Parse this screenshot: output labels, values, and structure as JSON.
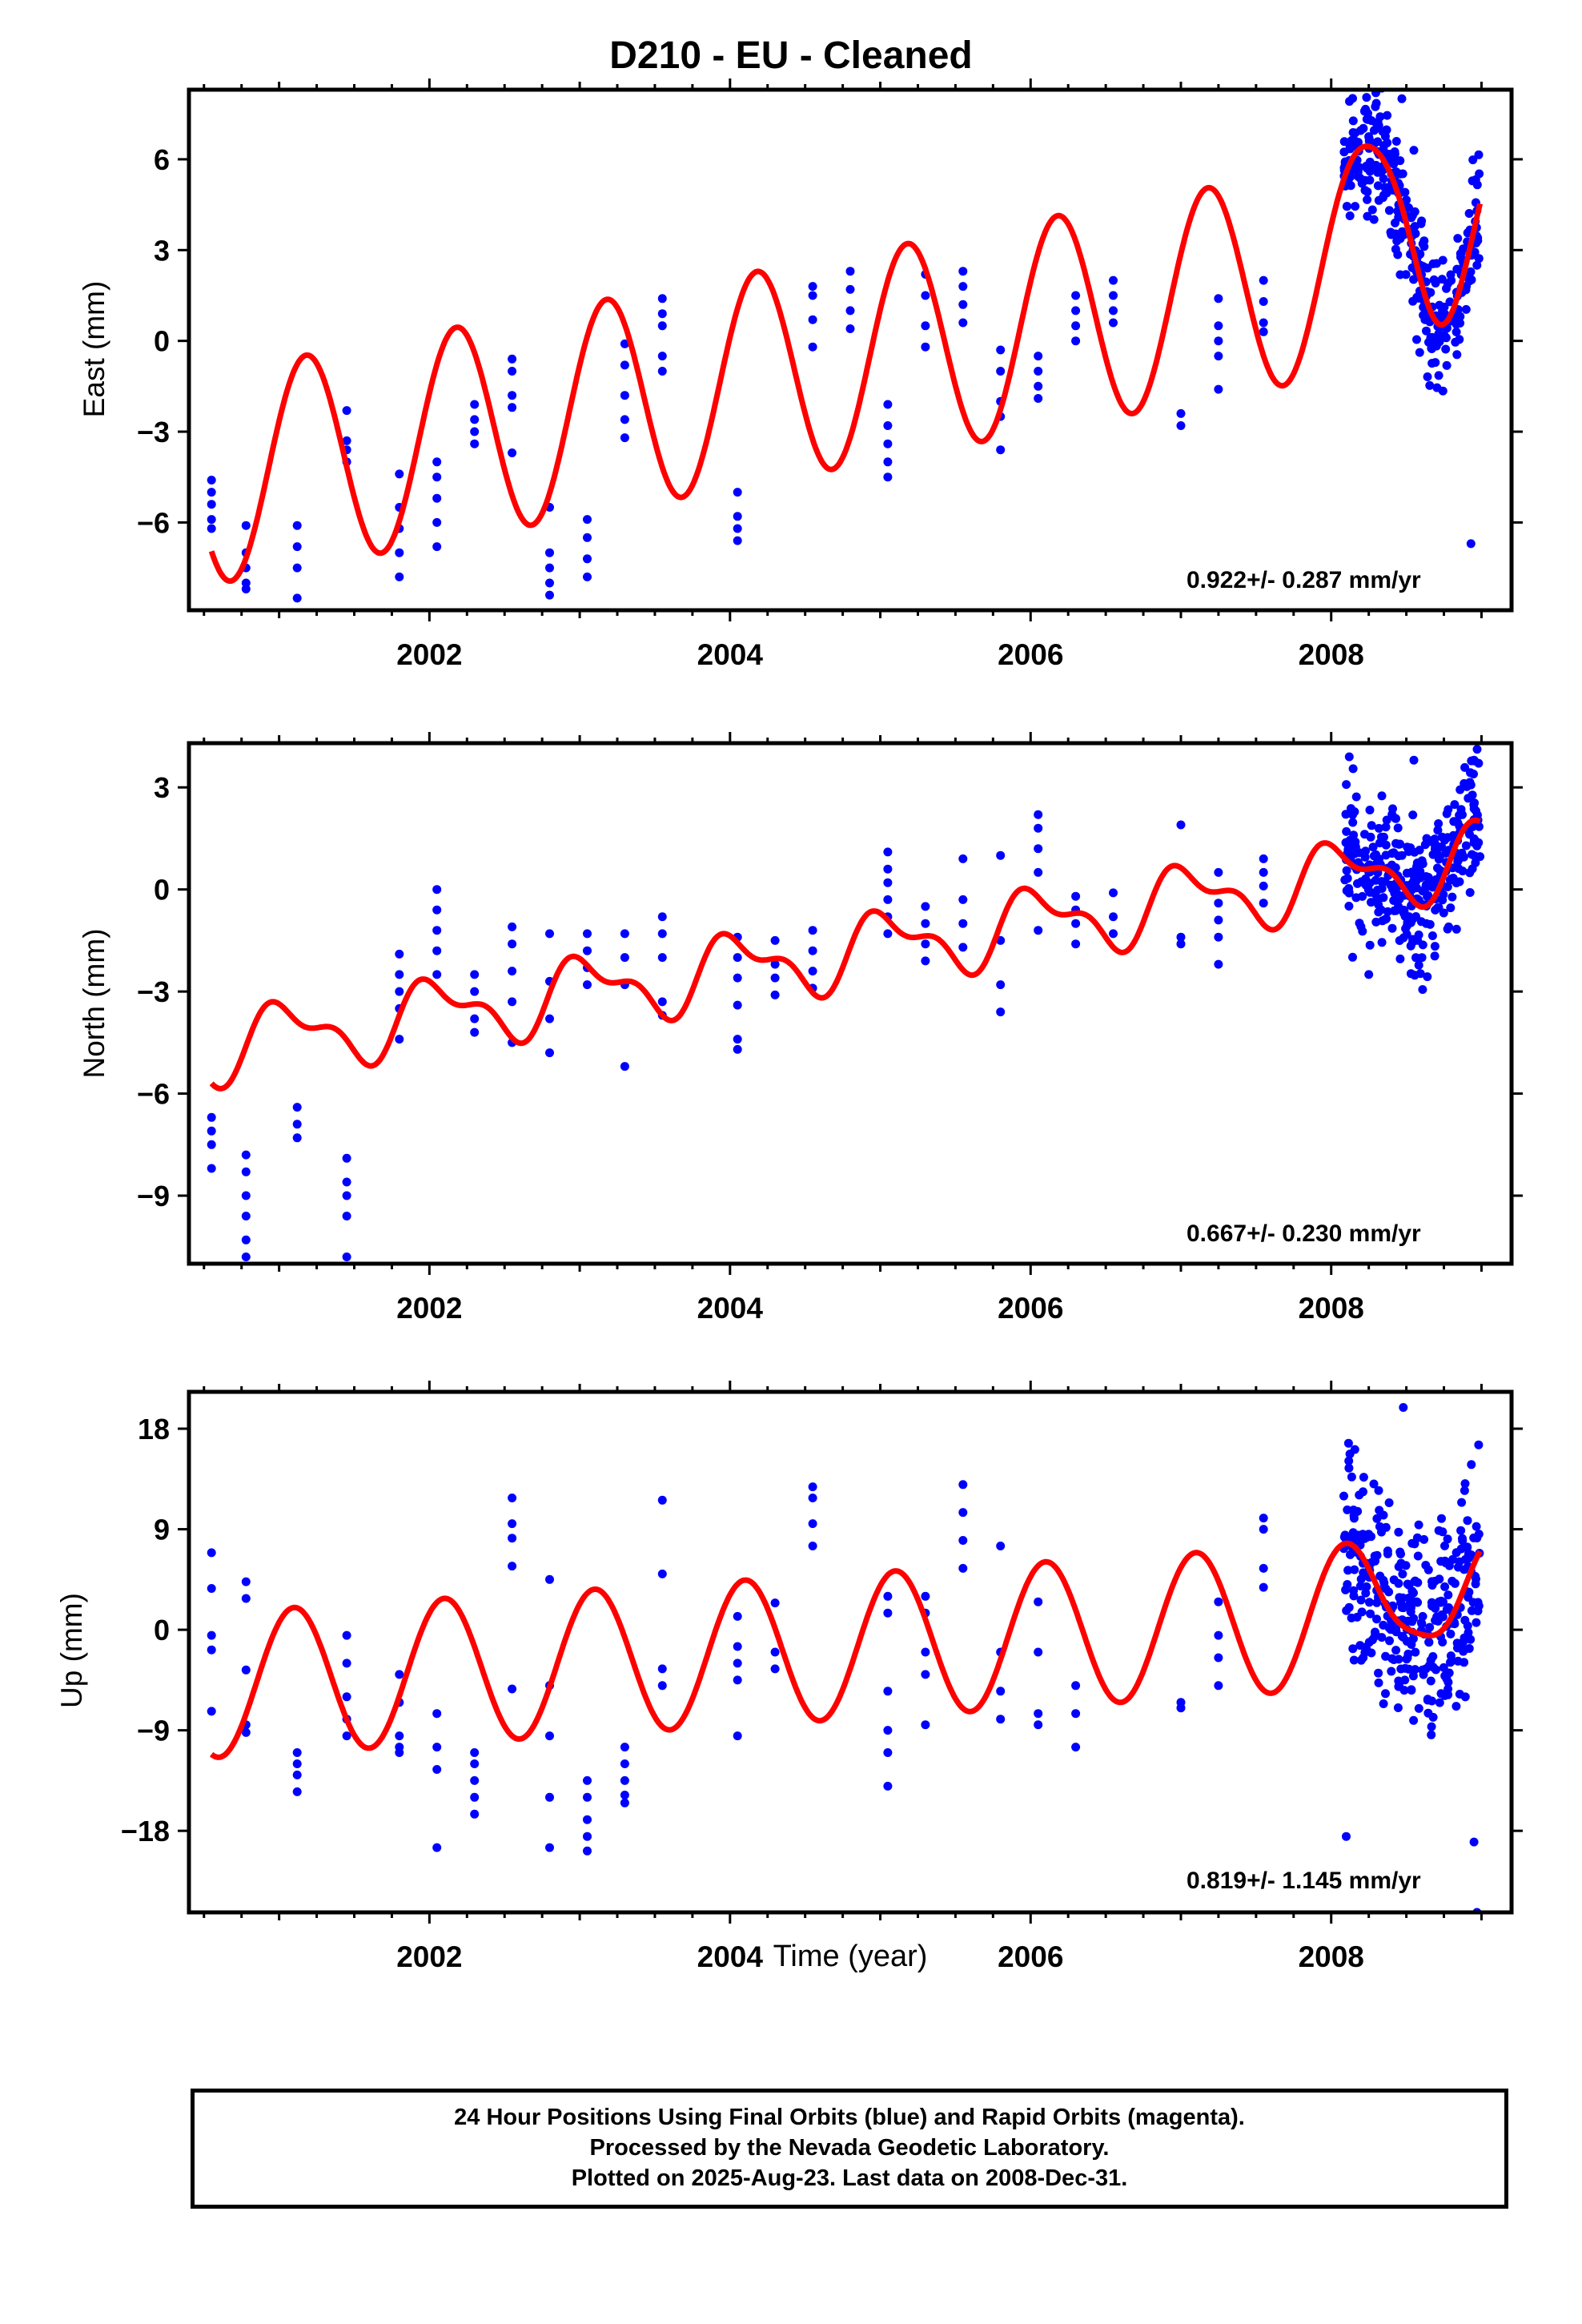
{
  "title": "D210  - EU - Cleaned",
  "xlabel": "Time (year)",
  "footer": {
    "line1": "24 Hour Positions Using Final Orbits (blue) and Rapid Orbits (magenta).",
    "line2": "Processed by the Nevada Geodetic Laboratory.",
    "line3": "Plotted on 2025-Aug-23. Last data on 2008-Dec-31."
  },
  "colors": {
    "data": "#0000ff",
    "model": "#ff0000",
    "axis": "#000000"
  },
  "chart_data": [
    {
      "type": "scatter",
      "ylabel": "East (mm)",
      "rate": "0.922+/- 0.287 mm/yr",
      "xlim": [
        2000.4,
        2009.2
      ],
      "ylim": [
        -8.9,
        8.3
      ],
      "xticks": [
        2002,
        2004,
        2006,
        2008
      ],
      "yticks": [
        -6,
        -3,
        0,
        3,
        6
      ],
      "model": {
        "offset": -4.6,
        "rate": 0.922,
        "t0": 2000.5,
        "amp": 3.5,
        "phase_year": 2000.93,
        "extra_peak": {
          "t": 2008.5,
          "height": 2.6,
          "width": 0.22
        }
      },
      "groups": [
        {
          "t": 2000.55,
          "ys": [
            -4.6,
            -5.0,
            -5.4,
            -5.9,
            -6.2
          ]
        },
        {
          "t": 2000.78,
          "ys": [
            -6.1,
            -7.0,
            -7.5,
            -8.0,
            -8.2
          ]
        },
        {
          "t": 2001.12,
          "ys": [
            -6.1,
            -6.8,
            -7.5,
            -8.5
          ]
        },
        {
          "t": 2001.45,
          "ys": [
            -2.3,
            -3.3,
            -3.6,
            -4.0
          ]
        },
        {
          "t": 2001.8,
          "ys": [
            -4.4,
            -5.5,
            -6.2,
            -7.0,
            -7.8
          ]
        },
        {
          "t": 2002.05,
          "ys": [
            -4.0,
            -4.5,
            -5.2,
            -6.0,
            -6.8
          ]
        },
        {
          "t": 2002.3,
          "ys": [
            -2.1,
            -2.6,
            -3.0,
            -3.4
          ]
        },
        {
          "t": 2002.55,
          "ys": [
            -0.6,
            -1.0,
            -1.8,
            -2.2,
            -3.7
          ]
        },
        {
          "t": 2002.8,
          "ys": [
            -5.5,
            -7.0,
            -7.5,
            -8.0,
            -8.4
          ]
        },
        {
          "t": 2003.05,
          "ys": [
            -5.9,
            -6.5,
            -7.2,
            -7.8
          ]
        },
        {
          "t": 2003.3,
          "ys": [
            -0.1,
            -0.8,
            -1.8,
            -2.6,
            -3.2
          ]
        },
        {
          "t": 2003.55,
          "ys": [
            1.4,
            0.9,
            0.5,
            -0.5,
            -1.0
          ]
        },
        {
          "t": 2004.05,
          "ys": [
            -5.0,
            -5.8,
            -6.2,
            -6.6
          ]
        },
        {
          "t": 2004.55,
          "ys": [
            1.8,
            1.5,
            0.7,
            -0.2
          ]
        },
        {
          "t": 2004.8,
          "ys": [
            2.3,
            1.7,
            1.0,
            0.4
          ]
        },
        {
          "t": 2005.05,
          "ys": [
            -2.1,
            -2.8,
            -3.4,
            -4.0,
            -4.5
          ]
        },
        {
          "t": 2005.3,
          "ys": [
            2.2,
            1.5,
            0.5,
            -0.2
          ]
        },
        {
          "t": 2005.55,
          "ys": [
            2.3,
            1.8,
            1.2,
            0.6
          ]
        },
        {
          "t": 2005.8,
          "ys": [
            -0.3,
            -1.0,
            -2.0,
            -2.5,
            -3.6
          ]
        },
        {
          "t": 2006.05,
          "ys": [
            -0.5,
            -1.0,
            -1.5,
            -1.9
          ]
        },
        {
          "t": 2006.3,
          "ys": [
            1.5,
            1.0,
            0.5,
            0.0
          ]
        },
        {
          "t": 2006.55,
          "ys": [
            2.0,
            1.5,
            1.0,
            0.6
          ]
        },
        {
          "t": 2007.0,
          "ys": [
            -2.4,
            -2.8
          ]
        },
        {
          "t": 2007.25,
          "ys": [
            1.4,
            0.5,
            0.0,
            -0.5,
            -1.6
          ]
        },
        {
          "t": 2007.55,
          "ys": [
            2.0,
            1.3,
            0.6,
            0.3
          ]
        }
      ],
      "dense": {
        "start": 2008.08,
        "end": 2008.99,
        "n": 340,
        "seed": 7,
        "noise": 1.0,
        "outliers": [
          [
            2008.47,
            8.0
          ],
          [
            2008.93,
            -6.7
          ],
          [
            2008.97,
            4.3
          ],
          [
            2008.97,
            2.5
          ],
          [
            2008.55,
            6.3
          ]
        ]
      }
    },
    {
      "type": "scatter",
      "ylabel": "North (mm)",
      "rate": "0.667+/- 0.230 mm/yr",
      "xlim": [
        2000.4,
        2009.2
      ],
      "ylim": [
        -11.0,
        4.3
      ],
      "xticks": [
        2002,
        2004,
        2006,
        2008
      ],
      "yticks": [
        -9,
        -6,
        -3,
        0,
        3
      ],
      "model": {
        "offset": -4.7,
        "rate": 0.667,
        "t0": 2000.5,
        "amp": 0.9,
        "phase_year": 2000.8,
        "h2": 0.45,
        "h2_phase": 0.3
      },
      "groups": [
        {
          "t": 2000.55,
          "ys": [
            -6.7,
            -7.1,
            -7.5,
            -8.2
          ]
        },
        {
          "t": 2000.78,
          "ys": [
            -7.8,
            -8.3,
            -9.0,
            -9.6,
            -10.3,
            -10.8
          ]
        },
        {
          "t": 2001.12,
          "ys": [
            -6.4,
            -6.9,
            -7.3
          ]
        },
        {
          "t": 2001.45,
          "ys": [
            -7.9,
            -8.6,
            -9.0,
            -9.6,
            -10.8
          ]
        },
        {
          "t": 2001.8,
          "ys": [
            -1.9,
            -2.5,
            -3.0,
            -3.5,
            -4.4
          ]
        },
        {
          "t": 2002.05,
          "ys": [
            0.0,
            -0.6,
            -1.2,
            -1.8,
            -2.5
          ]
        },
        {
          "t": 2002.3,
          "ys": [
            -2.5,
            -3.0,
            -3.8,
            -4.2
          ]
        },
        {
          "t": 2002.55,
          "ys": [
            -1.1,
            -1.6,
            -2.4,
            -3.3,
            -4.5
          ]
        },
        {
          "t": 2002.8,
          "ys": [
            -1.3,
            -2.7,
            -3.8,
            -4.8
          ]
        },
        {
          "t": 2003.05,
          "ys": [
            -1.3,
            -1.8,
            -2.3,
            -2.8
          ]
        },
        {
          "t": 2003.3,
          "ys": [
            -1.3,
            -2.0,
            -2.8,
            -5.2
          ]
        },
        {
          "t": 2003.55,
          "ys": [
            -0.8,
            -1.3,
            -2.0,
            -3.3,
            -3.7
          ]
        },
        {
          "t": 2004.05,
          "ys": [
            -1.4,
            -2.0,
            -2.6,
            -3.4,
            -4.4,
            -4.7
          ]
        },
        {
          "t": 2004.3,
          "ys": [
            -1.5,
            -2.2,
            -2.6,
            -3.1
          ]
        },
        {
          "t": 2004.55,
          "ys": [
            -1.2,
            -1.8,
            -2.4,
            -2.9
          ]
        },
        {
          "t": 2005.05,
          "ys": [
            1.1,
            0.6,
            0.2,
            -0.3,
            -0.8,
            -1.3
          ]
        },
        {
          "t": 2005.3,
          "ys": [
            -0.5,
            -1.0,
            -1.6,
            -2.1
          ]
        },
        {
          "t": 2005.55,
          "ys": [
            0.9,
            -0.3,
            -1.0,
            -1.7
          ]
        },
        {
          "t": 2005.8,
          "ys": [
            1.0,
            -1.5,
            -2.8,
            -3.6
          ]
        },
        {
          "t": 2006.05,
          "ys": [
            2.2,
            1.8,
            1.2,
            0.5,
            -1.2
          ]
        },
        {
          "t": 2006.3,
          "ys": [
            -0.2,
            -0.6,
            -1.0,
            -1.6
          ]
        },
        {
          "t": 2006.55,
          "ys": [
            -0.1,
            -0.8,
            -1.3
          ]
        },
        {
          "t": 2007.0,
          "ys": [
            1.9,
            -1.4,
            -1.6
          ]
        },
        {
          "t": 2007.25,
          "ys": [
            0.5,
            -0.4,
            -0.9,
            -1.4,
            -2.2
          ]
        },
        {
          "t": 2007.55,
          "ys": [
            0.9,
            0.5,
            0.1,
            -0.4
          ]
        }
      ],
      "dense": {
        "start": 2008.08,
        "end": 2008.99,
        "n": 340,
        "seed": 11,
        "noise": 1.0,
        "outliers": [
          [
            2008.12,
            3.9
          ],
          [
            2008.25,
            -2.5
          ],
          [
            2008.55,
            3.8
          ],
          [
            2008.95,
            3.8
          ]
        ]
      }
    },
    {
      "type": "scatter",
      "ylabel": "Up (mm)",
      "rate": "0.819+/- 1.145 mm/yr",
      "xlim": [
        2000.4,
        2009.2
      ],
      "ylim": [
        -25.3,
        21.3
      ],
      "xticks": [
        2002,
        2004,
        2006,
        2008
      ],
      "yticks": [
        -18,
        -9,
        0,
        9,
        18
      ],
      "model": {
        "offset": -5.0,
        "rate": 0.819,
        "t0": 2000.5,
        "amp": 6.5,
        "phase_year": 2000.85,
        "extra_peak": {
          "t": 2008.58,
          "height": 4.5,
          "width": 0.2
        }
      },
      "groups": [
        {
          "t": 2000.55,
          "ys": [
            6.9,
            3.7,
            -0.5,
            -1.8,
            -7.3
          ]
        },
        {
          "t": 2000.78,
          "ys": [
            4.3,
            2.8,
            -3.6,
            -8.5,
            -9.2
          ]
        },
        {
          "t": 2001.12,
          "ys": [
            -11.0,
            -12.0,
            -13.0,
            -14.5
          ]
        },
        {
          "t": 2001.45,
          "ys": [
            -0.5,
            -3.0,
            -6.0,
            -8.0,
            -9.5
          ]
        },
        {
          "t": 2001.8,
          "ys": [
            -4.0,
            -6.5,
            -9.5,
            -10.5,
            -11.0
          ]
        },
        {
          "t": 2002.05,
          "ys": [
            -7.5,
            -10.5,
            -12.5,
            -19.5
          ]
        },
        {
          "t": 2002.3,
          "ys": [
            -11.0,
            -12.0,
            -13.5,
            -15.0,
            -16.5
          ]
        },
        {
          "t": 2002.55,
          "ys": [
            11.8,
            9.5,
            8.2,
            5.7,
            -5.3
          ]
        },
        {
          "t": 2002.8,
          "ys": [
            4.5,
            -5.0,
            -9.5,
            -15.0,
            -19.5
          ]
        },
        {
          "t": 2003.05,
          "ys": [
            -13.5,
            -15.0,
            -17.0,
            -18.5,
            -19.8
          ]
        },
        {
          "t": 2003.3,
          "ys": [
            -10.5,
            -12.0,
            -13.5,
            -14.8,
            -15.5
          ]
        },
        {
          "t": 2003.55,
          "ys": [
            11.6,
            5.0,
            -3.5,
            -5.0
          ]
        },
        {
          "t": 2004.05,
          "ys": [
            1.2,
            -1.5,
            -3.0,
            -4.5,
            -9.5
          ]
        },
        {
          "t": 2004.3,
          "ys": [
            2.4,
            -2.0,
            -3.5
          ]
        },
        {
          "t": 2004.55,
          "ys": [
            12.8,
            11.8,
            9.5,
            7.5
          ]
        },
        {
          "t": 2005.05,
          "ys": [
            3.0,
            1.5,
            -5.5,
            -9.0,
            -11.0,
            -14.0
          ]
        },
        {
          "t": 2005.3,
          "ys": [
            3.0,
            1.5,
            -2.0,
            -4.0,
            -8.5
          ]
        },
        {
          "t": 2005.55,
          "ys": [
            13.0,
            10.5,
            8.0,
            5.5
          ]
        },
        {
          "t": 2005.8,
          "ys": [
            7.5,
            -2.0,
            -5.5,
            -8.0
          ]
        },
        {
          "t": 2006.05,
          "ys": [
            2.5,
            -2.0,
            -7.5,
            -8.5
          ]
        },
        {
          "t": 2006.3,
          "ys": [
            -5.0,
            -7.5,
            -10.5
          ]
        },
        {
          "t": 2007.0,
          "ys": [
            -6.5,
            -7.0
          ]
        },
        {
          "t": 2007.25,
          "ys": [
            2.5,
            -0.5,
            -2.5,
            -5.0
          ]
        },
        {
          "t": 2007.55,
          "ys": [
            10.0,
            9.0,
            5.5,
            3.8
          ]
        }
      ],
      "dense": {
        "start": 2008.08,
        "end": 2008.99,
        "n": 340,
        "seed": 23,
        "noise": 4.5,
        "outliers": [
          [
            2008.48,
            19.9
          ],
          [
            2008.97,
            -25.3
          ],
          [
            2008.1,
            -18.5
          ],
          [
            2008.95,
            -19.0
          ]
        ]
      }
    }
  ]
}
